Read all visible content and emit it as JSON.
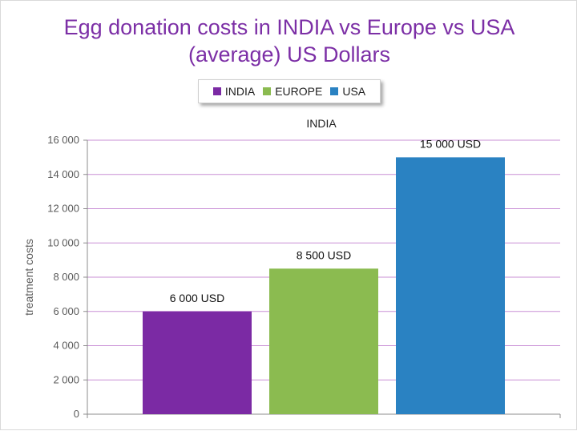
{
  "chart_data": {
    "type": "bar",
    "title": "Egg donation costs in INDIA vs Europe vs USA (average) US Dollars",
    "title_lines": [
      "Egg donation costs in INDIA vs Europe vs USA",
      "(average) US Dollars"
    ],
    "category_label": "INDIA",
    "xlabel": "",
    "ylabel": "treatment costs",
    "ylim": [
      0,
      16000
    ],
    "y_ticks": [
      0,
      2000,
      4000,
      6000,
      8000,
      10000,
      12000,
      14000,
      16000
    ],
    "y_tick_labels": [
      "0",
      "2 000",
      "4 000",
      "6 000",
      "8 000",
      "10 000",
      "12 000",
      "14 000",
      "16 000"
    ],
    "grid": true,
    "legend_position": "top",
    "series": [
      {
        "name": "INDIA",
        "values": [
          6000
        ],
        "data_label": "6 000 USD",
        "color": "#7b2aa4"
      },
      {
        "name": "EUROPE",
        "values": [
          8500
        ],
        "data_label": "8 500 USD",
        "color": "#8bbb50"
      },
      {
        "name": "USA",
        "values": [
          15000
        ],
        "data_label": "15 000 USD",
        "color": "#2a82c2"
      }
    ]
  },
  "colors": {
    "title": "#7c2fa6",
    "gridline": "#c98fd6",
    "axis": "#8c8c8c"
  }
}
